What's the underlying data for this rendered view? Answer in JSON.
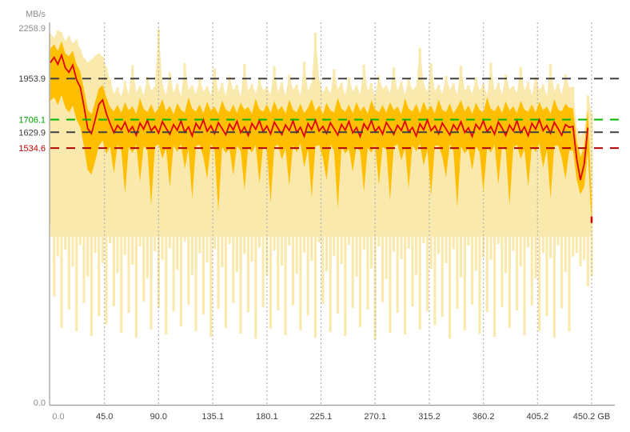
{
  "chart_data": {
    "type": "area",
    "title": "",
    "ylabel": "MB/s",
    "xlabel": "GB",
    "x_range": [
      0,
      450.2
    ],
    "ylim": [
      0,
      2258.9
    ],
    "grid": {
      "vertical": "dotted",
      "color": "#b0b0b0"
    },
    "colors": {
      "axis": "#999999",
      "label_gray": "#8e8e8e",
      "label_dark": "#3c3c3c",
      "range_fill": "#fae9ad",
      "band_fill": "#ffbf00",
      "avg_line": "#e10000"
    },
    "y_ticks": [
      {
        "label": "2258.9",
        "value": 2258.9,
        "color": "#8e8e8e"
      },
      {
        "label": "1953.9",
        "value": 1953.9,
        "color": "#3c3c3c"
      },
      {
        "label": "1706.1",
        "value": 1706.1,
        "color": "#00a000"
      },
      {
        "label": "1629.9",
        "value": 1629.9,
        "color": "#3c3c3c"
      },
      {
        "label": "1534.6",
        "value": 1534.6,
        "color": "#c00000"
      },
      {
        "label": "0.0",
        "value": 0,
        "color": "#8e8e8e"
      }
    ],
    "x_ticks": [
      {
        "label": "0.0",
        "value": 0,
        "color": "#8e8e8e"
      },
      {
        "label": "45.0",
        "value": 45.0,
        "color": "#3c3c3c"
      },
      {
        "label": "90.0",
        "value": 90.0,
        "color": "#3c3c3c"
      },
      {
        "label": "135.1",
        "value": 135.1,
        "color": "#3c3c3c"
      },
      {
        "label": "180.1",
        "value": 180.1,
        "color": "#3c3c3c"
      },
      {
        "label": "225.1",
        "value": 225.1,
        "color": "#3c3c3c"
      },
      {
        "label": "270.1",
        "value": 270.1,
        "color": "#3c3c3c"
      },
      {
        "label": "315.2",
        "value": 315.2,
        "color": "#3c3c3c"
      },
      {
        "label": "360.2",
        "value": 360.2,
        "color": "#3c3c3c"
      },
      {
        "label": "405.2",
        "value": 405.2,
        "color": "#3c3c3c"
      },
      {
        "label": "450.2 GB",
        "value": 450.2,
        "color": "#3c3c3c"
      }
    ],
    "reference_lines": [
      {
        "name": "max-marker",
        "value": 1953.9,
        "color": "#404040",
        "style": "dashed"
      },
      {
        "name": "avg-marker",
        "value": 1706.1,
        "color": "#00b400",
        "style": "dashed"
      },
      {
        "name": "mid-marker",
        "value": 1629.9,
        "color": "#404040",
        "style": "dashed"
      },
      {
        "name": "min-marker",
        "value": 1534.6,
        "color": "#b00000",
        "style": "dashed"
      }
    ],
    "n_points": 146,
    "last_point_isolated": true,
    "series": [
      {
        "name": "min-max-range",
        "type": "band",
        "color": "#fae9ad",
        "high": [
          2225,
          2198,
          2245,
          2232,
          2180,
          2210,
          2165,
          2190,
          2130,
          2078,
          2052,
          2068,
          2090,
          2105,
          2085,
          2022,
          1945,
          1862,
          1900,
          1845,
          1938,
          1858,
          2035,
          1872,
          1910,
          1852,
          1965,
          1880,
          1905,
          2250,
          1918,
          1856,
          1990,
          1868,
          1922,
          1848,
          2048,
          1885,
          1912,
          1860,
          1952,
          1875,
          1908,
          1855,
          2015,
          1870,
          1928,
          1850,
          1968,
          1882,
          1915,
          1846,
          2042,
          1878,
          1920,
          1865,
          1948,
          1884,
          1902,
          1858,
          2028,
          1874,
          1932,
          1853,
          1975,
          1886,
          1918,
          1849,
          2055,
          1880,
          1925,
          2230,
          1942,
          1870,
          1906,
          1862,
          2010,
          1888,
          1930,
          1854,
          1960,
          1876,
          1914,
          1857,
          2038,
          1882,
          1926,
          1851,
          1972,
          1890,
          1910,
          1866,
          2020,
          1878,
          1936,
          1859,
          1955,
          1885,
          1905,
          2140,
          1920,
          1872,
          2045,
          1880,
          1916,
          1861,
          1970,
          1887,
          1924,
          1856,
          2032,
          1879,
          1912,
          1864,
          1958,
          1883,
          1921,
          1852,
          2050,
          1877,
          1929,
          1860,
          1978,
          1889,
          1908,
          1867,
          2025,
          1881,
          1934,
          1855,
          1962,
          1886,
          1917,
          1850,
          2040,
          1875,
          1923,
          1858,
          1980,
          1900,
          1905,
          1655,
          1610,
          1630,
          1852,
          1745
        ],
        "low": [
          1080,
          640,
          880,
          450,
          920,
          560,
          820,
          430,
          950,
          600,
          760,
          400,
          900,
          520,
          840,
          470,
          960,
          580,
          780,
          420,
          890,
          540,
          830,
          390,
          940,
          610,
          750,
          440,
          910,
          570,
          860,
          410,
          930,
          550,
          800,
          460,
          970,
          590,
          770,
          430,
          900,
          530,
          845,
          395,
          925,
          565,
          815,
          450,
          955,
          600,
          785,
          415,
          895,
          545,
          850,
          385,
          935,
          575,
          765,
          445,
          915,
          555,
          825,
          405,
          945,
          585,
          775,
          435,
          905,
          525,
          855,
          390,
          965,
          595,
          790,
          425,
          885,
          535,
          835,
          400,
          950,
          570,
          760,
          455,
          920,
          560,
          810,
          380,
          940,
          605,
          745,
          420,
          910,
          540,
          865,
          410,
          930,
          580,
          770,
          440,
          960,
          550,
          805,
          465,
          895,
          515,
          840,
          385,
          925,
          565,
          755,
          435,
          945,
          590,
          795,
          415,
          875,
          545,
          860,
          395,
          955,
          575,
          780,
          450,
          915,
          555,
          820,
          405,
          935,
          585,
          750,
          430,
          900,
          520,
          870,
          390,
          948,
          568,
          788,
          428,
          880,
          900,
          820,
          860,
          700,
          760
        ]
      },
      {
        "name": "typical-band",
        "type": "band",
        "color": "#ffbf00",
        "high": [
          2135,
          2160,
          2120,
          2178,
          2105,
          2088,
          2122,
          2040,
          1998,
          1890,
          1768,
          1740,
          1812,
          1895,
          1915,
          1840,
          1782,
          1756,
          1795,
          1748,
          1810,
          1762,
          1788,
          1742,
          1836,
          1770,
          1752,
          1800,
          1745,
          1775,
          1828,
          1758,
          1790,
          1738,
          1805,
          1765,
          1748,
          1842,
          1772,
          1755,
          1798,
          1744,
          1815,
          1760,
          1786,
          1740,
          1822,
          1768,
          1752,
          1796,
          1746,
          1808,
          1764,
          1784,
          1741,
          1832,
          1769,
          1753,
          1799,
          1747,
          1818,
          1761,
          1789,
          1743,
          1826,
          1766,
          1750,
          1802,
          1744,
          1778,
          1830,
          1757,
          1792,
          1739,
          1807,
          1763,
          1749,
          1838,
          1771,
          1754,
          1797,
          1745,
          1813,
          1759,
          1787,
          1742,
          1824,
          1767,
          1751,
          1794,
          1748,
          1811,
          1762,
          1785,
          1740,
          1834,
          1770,
          1755,
          1801,
          1746,
          1816,
          1760,
          1791,
          1744,
          1828,
          1765,
          1752,
          1804,
          1743,
          1780,
          1825,
          1756,
          1793,
          1741,
          1809,
          1764,
          1750,
          1840,
          1773,
          1758,
          1795,
          1747,
          1817,
          1761,
          1788,
          1745,
          1820,
          1766,
          1753,
          1798,
          1749,
          1814,
          1763,
          1786,
          1742,
          1830,
          1768,
          1756,
          1803,
          1776,
          1775,
          1580,
          1480,
          1540,
          1770,
          1200
        ],
        "low": [
          1820,
          1840,
          1795,
          1855,
          1778,
          1750,
          1790,
          1705,
          1662,
          1545,
          1402,
          1375,
          1455,
          1548,
          1580,
          1500,
          1545,
          1380,
          1552,
          1518,
          1260,
          1540,
          1505,
          1555,
          1330,
          1548,
          1520,
          1185,
          1542,
          1558,
          1470,
          1535,
          1295,
          1550,
          1512,
          1560,
          1410,
          1530,
          1225,
          1545,
          1555,
          1480,
          1350,
          1558,
          1520,
          1150,
          1542,
          1505,
          1528,
          1370,
          1549,
          1515,
          1280,
          1538,
          1508,
          1552,
          1320,
          1544,
          1522,
          1200,
          1540,
          1556,
          1465,
          1532,
          1305,
          1551,
          1510,
          1562,
          1420,
          1528,
          1235,
          1546,
          1553,
          1478,
          1340,
          1556,
          1518,
          1165,
          1543,
          1502,
          1530,
          1390,
          1547,
          1512,
          1270,
          1536,
          1506,
          1554,
          1310,
          1542,
          1524,
          1215,
          1541,
          1559,
          1460,
          1534,
          1290,
          1552,
          1514,
          1561,
          1430,
          1526,
          1245,
          1548,
          1550,
          1482,
          1360,
          1557,
          1516,
          1175,
          1544,
          1503,
          1532,
          1400,
          1545,
          1510,
          1265,
          1539,
          1507,
          1553,
          1315,
          1546,
          1521,
          1190,
          1538,
          1554,
          1468,
          1530,
          1300,
          1550,
          1509,
          1563,
          1415,
          1525,
          1230,
          1547,
          1551,
          1475,
          1345,
          1520,
          1520,
          1345,
          1255,
          1300,
          1510,
          1060
        ]
      },
      {
        "name": "average-speed",
        "type": "line",
        "color": "#e10000",
        "values": [
          2050,
          2082,
          2040,
          2095,
          2018,
          1992,
          2035,
          1948,
          1902,
          1788,
          1652,
          1622,
          1705,
          1798,
          1825,
          1742,
          1682,
          1628,
          1671,
          1645,
          1690,
          1632,
          1664,
          1612,
          1685,
          1649,
          1702,
          1638,
          1666,
          1625,
          1694,
          1655,
          1618,
          1676,
          1642,
          1698,
          1630,
          1662,
          1608,
          1684,
          1650,
          1705,
          1636,
          1669,
          1622,
          1688,
          1652,
          1615,
          1679,
          1644,
          1696,
          1627,
          1661,
          1610,
          1683,
          1648,
          1700,
          1634,
          1667,
          1620,
          1691,
          1653,
          1616,
          1674,
          1640,
          1699,
          1629,
          1660,
          1606,
          1682,
          1646,
          1703,
          1637,
          1665,
          1623,
          1687,
          1651,
          1613,
          1677,
          1643,
          1695,
          1626,
          1658,
          1604,
          1681,
          1647,
          1701,
          1635,
          1663,
          1619,
          1689,
          1654,
          1617,
          1672,
          1641,
          1697,
          1631,
          1659,
          1607,
          1680,
          1645,
          1704,
          1639,
          1668,
          1621,
          1686,
          1650,
          1614,
          1675,
          1642,
          1693,
          1628,
          1657,
          1605,
          1678,
          1648,
          1699,
          1633,
          1664,
          1618,
          1692,
          1656,
          1611,
          1673,
          1638,
          1700,
          1627,
          1662,
          1609,
          1684,
          1649,
          1706,
          1640,
          1670,
          1624,
          1690,
          1652,
          1612,
          1676,
          1660,
          1665,
          1470,
          1342,
          1438,
          1658,
          1102
        ]
      }
    ]
  }
}
